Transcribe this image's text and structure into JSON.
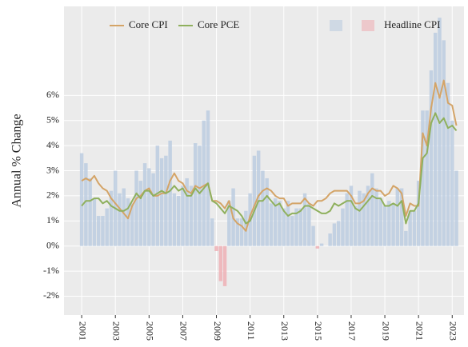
{
  "chart_data": {
    "type": "line",
    "ylabel": "Annual % Change",
    "x": [
      2001,
      2001.25,
      2001.5,
      2001.75,
      2002,
      2002.25,
      2002.5,
      2002.75,
      2003,
      2003.25,
      2003.5,
      2003.75,
      2004,
      2004.25,
      2004.5,
      2004.75,
      2005,
      2005.25,
      2005.5,
      2005.75,
      2006,
      2006.25,
      2006.5,
      2006.75,
      2007,
      2007.25,
      2007.5,
      2007.75,
      2008,
      2008.25,
      2008.5,
      2008.75,
      2009,
      2009.25,
      2009.5,
      2009.75,
      2010,
      2010.25,
      2010.5,
      2010.75,
      2011,
      2011.25,
      2011.5,
      2011.75,
      2012,
      2012.25,
      2012.5,
      2012.75,
      2013,
      2013.25,
      2013.5,
      2013.75,
      2014,
      2014.25,
      2014.5,
      2014.75,
      2015,
      2015.25,
      2015.5,
      2015.75,
      2016,
      2016.25,
      2016.5,
      2016.75,
      2017,
      2017.25,
      2017.5,
      2017.75,
      2018,
      2018.25,
      2018.5,
      2018.75,
      2019,
      2019.25,
      2019.5,
      2019.75,
      2020,
      2020.25,
      2020.5,
      2020.75,
      2021,
      2021.25,
      2021.5,
      2021.75,
      2022,
      2022.25,
      2022.5,
      2022.75,
      2023,
      2023.25
    ],
    "series": [
      {
        "name": "Core CPI",
        "type": "line",
        "color": "#d4a467",
        "values": [
          2.6,
          2.7,
          2.6,
          2.8,
          2.5,
          2.3,
          2.2,
          1.9,
          1.7,
          1.5,
          1.3,
          1.1,
          1.6,
          1.9,
          2.0,
          2.2,
          2.3,
          2.0,
          2.0,
          2.1,
          2.1,
          2.6,
          2.9,
          2.6,
          2.5,
          2.2,
          2.1,
          2.4,
          2.3,
          2.4,
          2.5,
          1.8,
          1.8,
          1.7,
          1.5,
          1.8,
          1.1,
          0.9,
          0.8,
          0.6,
          1.2,
          1.6,
          2.0,
          2.2,
          2.3,
          2.2,
          2.0,
          1.9,
          1.9,
          1.6,
          1.7,
          1.7,
          1.7,
          1.9,
          1.7,
          1.6,
          1.8,
          1.8,
          1.9,
          2.1,
          2.2,
          2.2,
          2.2,
          2.2,
          2.0,
          1.7,
          1.7,
          1.8,
          2.1,
          2.3,
          2.2,
          2.2,
          2.0,
          2.1,
          2.4,
          2.3,
          2.1,
          1.2,
          1.7,
          1.6,
          1.6,
          4.5,
          4.0,
          5.5,
          6.5,
          5.9,
          6.6,
          5.7,
          5.6,
          4.8
        ]
      },
      {
        "name": "Core PCE",
        "type": "line",
        "color": "#8fb05d",
        "values": [
          1.6,
          1.8,
          1.8,
          1.9,
          1.9,
          1.7,
          1.8,
          1.6,
          1.5,
          1.4,
          1.4,
          1.5,
          1.8,
          2.1,
          1.9,
          2.2,
          2.2,
          2.0,
          2.1,
          2.2,
          2.1,
          2.2,
          2.4,
          2.2,
          2.3,
          2.0,
          2.0,
          2.3,
          2.1,
          2.3,
          2.5,
          1.8,
          1.7,
          1.5,
          1.3,
          1.6,
          1.5,
          1.4,
          1.2,
          0.9,
          1.0,
          1.4,
          1.8,
          1.8,
          2.0,
          1.8,
          1.6,
          1.7,
          1.4,
          1.2,
          1.3,
          1.3,
          1.4,
          1.6,
          1.6,
          1.5,
          1.4,
          1.3,
          1.3,
          1.4,
          1.7,
          1.6,
          1.7,
          1.8,
          1.8,
          1.5,
          1.4,
          1.6,
          1.8,
          2.0,
          1.9,
          1.9,
          1.6,
          1.6,
          1.7,
          1.6,
          1.8,
          0.9,
          1.4,
          1.4,
          1.7,
          3.5,
          3.7,
          4.9,
          5.3,
          4.9,
          5.1,
          4.7,
          4.8,
          4.6
        ]
      },
      {
        "name": "Headline CPI",
        "type": "bar",
        "color": "#bccde0",
        "negative_color": "#eeb0b5",
        "values": [
          3.7,
          3.3,
          2.7,
          1.9,
          1.2,
          1.2,
          1.5,
          2.2,
          3.0,
          2.1,
          2.3,
          1.9,
          1.7,
          3.0,
          2.6,
          3.3,
          3.1,
          2.9,
          4.0,
          3.5,
          3.6,
          4.2,
          2.1,
          2.0,
          2.4,
          2.7,
          2.4,
          4.1,
          4.0,
          5.0,
          5.4,
          1.1,
          -0.2,
          -1.4,
          -1.6,
          1.8,
          2.3,
          1.1,
          1.1,
          1.4,
          2.1,
          3.6,
          3.8,
          3.0,
          2.7,
          1.7,
          1.9,
          1.8,
          1.5,
          1.8,
          1.2,
          1.5,
          1.5,
          2.1,
          1.7,
          0.8,
          -0.1,
          0.1,
          0.0,
          0.5,
          0.9,
          1.0,
          1.5,
          2.1,
          2.4,
          1.6,
          2.2,
          2.1,
          2.4,
          2.9,
          2.3,
          1.9,
          1.6,
          1.8,
          1.7,
          2.3,
          2.3,
          0.6,
          1.4,
          1.4,
          2.6,
          5.4,
          5.4,
          7.0,
          8.5,
          9.1,
          8.2,
          6.5,
          5.0,
          3.0
        ]
      }
    ],
    "xlim": [
      1999.95,
      2023.7
    ],
    "xticks": [
      2001,
      2003,
      2005,
      2007,
      2009,
      2011,
      2013,
      2015,
      2017,
      2019,
      2021,
      2023
    ],
    "ylim": [
      -2.75,
      9.55
    ],
    "yticks": [
      {
        "value": -2,
        "label": "-2%"
      },
      {
        "value": -1,
        "label": "-1%"
      },
      {
        "value": 0,
        "label": "0%"
      },
      {
        "value": 1,
        "label": "1%"
      },
      {
        "value": 2,
        "label": "2%"
      },
      {
        "value": 3,
        "label": "3%"
      },
      {
        "value": 4,
        "label": "4%"
      },
      {
        "value": 5,
        "label": "5%"
      },
      {
        "value": 6,
        "label": "6%"
      }
    ],
    "grid": true,
    "legend": "top"
  }
}
